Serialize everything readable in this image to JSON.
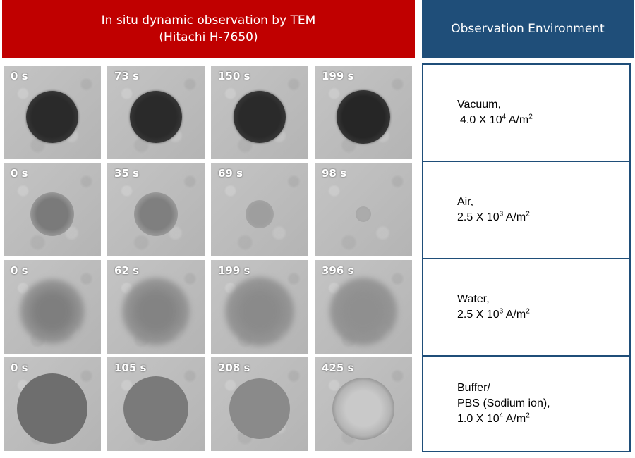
{
  "header": {
    "left_line1": "In situ dynamic observation by TEM",
    "left_line2": "(Hitachi H-7650)",
    "right": "Observation Environment"
  },
  "rows": [
    {
      "times": [
        "0 s",
        "73 s",
        "150 s",
        "199 s"
      ],
      "env_lines": [
        "Vacuum,"
      ],
      "current": {
        "mantissa": "4.0 X 10",
        "exp": "4",
        "unit": " A/m",
        "unit_exp": "2"
      }
    },
    {
      "times": [
        "0 s",
        "35 s",
        "69 s",
        "98 s"
      ],
      "env_lines": [
        "Air,"
      ],
      "current": {
        "mantissa": "2.5 X 10",
        "exp": "3",
        "unit": " A/m",
        "unit_exp": "2"
      }
    },
    {
      "times": [
        "0 s",
        "62 s",
        "199 s",
        "396 s"
      ],
      "env_lines": [
        "Water,"
      ],
      "current": {
        "mantissa": "2.5 X 10",
        "exp": "3",
        "unit": " A/m",
        "unit_exp": "2"
      }
    },
    {
      "times": [
        "0 s",
        "105 s",
        "208 s",
        "425 s"
      ],
      "env_lines": [
        "Buffer/",
        "PBS (Sodium ion),"
      ],
      "current": {
        "mantissa": "1.0 X 10",
        "exp": "4",
        "unit": " A/m",
        "unit_exp": "2"
      }
    }
  ]
}
